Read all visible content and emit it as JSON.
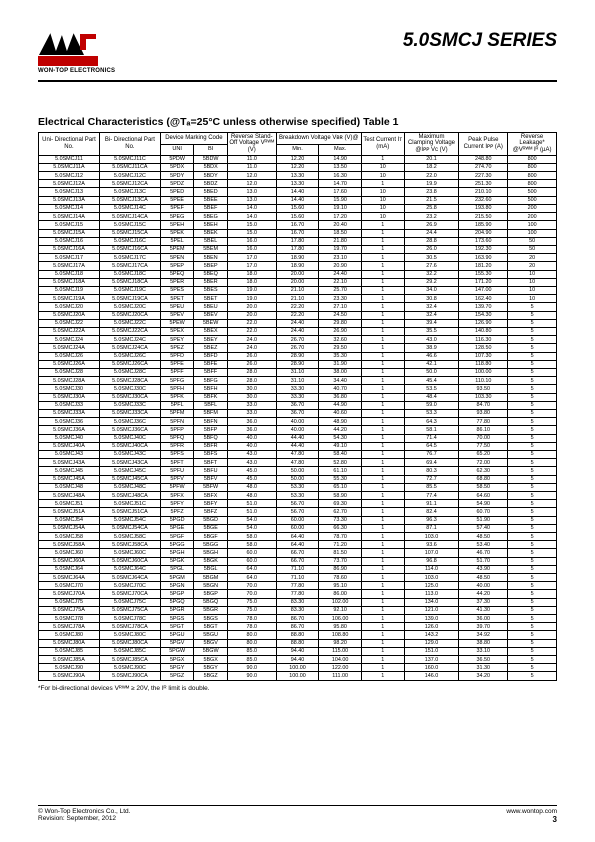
{
  "header": {
    "logo_text": "WON-TOP ELECTRONICS",
    "series_title": "5.0SMCJ SERIES"
  },
  "table_title": "Electrical Characteristics (@Tₐ=25°C unless otherwise specified) Table 1",
  "columns": {
    "uni": "Uni-\nDirectional\nPart No.",
    "bi": "Bi-\nDirectional\nPart No.",
    "marking": "Device\nMarking Code",
    "marking_uni": "UNI",
    "marking_bi": "BI",
    "vrwm": "Reverse\nStand-Off\nVoltage\nVᴿᵂᴹ (V)",
    "bdv": "Breakdown Voltage\nVʙʀ (V)@",
    "bdv_min": "Min.",
    "bdv_max": "Max.",
    "it": "Test\nCurrent\nIᴛ (mA)",
    "vc": "Maximum\nClamping\nVoltage @Iᴘᴘ\nVᴄ (V)",
    "ipp": "Peak Pulse\nCurrent\nIᴘᴘ (A)",
    "ir": "Reverse\nLeakage*\n@Vᴿᵂᴹ\nIᴿ (µA)"
  },
  "groups": [
    [
      [
        "5.0SMCJ11",
        "5.0SMCJ11C",
        "5PDW",
        "5BDW",
        "11.0",
        "12.20",
        "14.90",
        "1",
        "20.1",
        "248.80",
        "800"
      ],
      [
        "5.0SMCJ11A",
        "5.0SMCJ11CA",
        "5PDX",
        "5BDX",
        "11.0",
        "12.20",
        "13.50",
        "10",
        "18.2",
        "274.70",
        "800"
      ],
      [
        "5.0SMCJ12",
        "5.0SMCJ12C",
        "5PDY",
        "5BDY",
        "12.0",
        "13.30",
        "16.30",
        "10",
        "22.0",
        "227.30",
        "800"
      ],
      [
        "5.0SMCJ12A",
        "5.0SMCJ12CA",
        "5PDZ",
        "5BDZ",
        "12.0",
        "13.30",
        "14.70",
        "1",
        "19.9",
        "251.30",
        "800"
      ]
    ],
    [
      [
        "5.0SMCJ13",
        "5.0SMCJ13C",
        "5PED",
        "5BED",
        "13.0",
        "14.40",
        "17.60",
        "10",
        "23.8",
        "210.10",
        "500"
      ],
      [
        "5.0SMCJ13A",
        "5.0SMCJ13CA",
        "5PEE",
        "5BEE",
        "13.0",
        "14.40",
        "15.90",
        "10",
        "21.5",
        "232.60",
        "500"
      ],
      [
        "5.0SMCJ14",
        "5.0SMCJ14C",
        "5PEF",
        "5BEF",
        "14.0",
        "15.60",
        "19.10",
        "10",
        "25.8",
        "193.80",
        "200"
      ],
      [
        "5.0SMCJ14A",
        "5.0SMCJ14CA",
        "5PEG",
        "5BEG",
        "14.0",
        "15.60",
        "17.20",
        "10",
        "23.2",
        "215.50",
        "200"
      ]
    ],
    [
      [
        "5.0SMCJ15",
        "5.0SMCJ15C",
        "5PEH",
        "5BEH",
        "15.0",
        "16.70",
        "20.40",
        "1",
        "26.9",
        "185.90",
        "100"
      ],
      [
        "5.0SMCJ15A",
        "5.0SMCJ15CA",
        "5PEK",
        "5BEK",
        "15.0",
        "16.70",
        "18.50",
        "1",
        "24.4",
        "204.90",
        "100"
      ],
      [
        "5.0SMCJ16",
        "5.0SMCJ16C",
        "5PEL",
        "5BEL",
        "16.0",
        "17.80",
        "21.80",
        "1",
        "28.8",
        "173.60",
        "50"
      ],
      [
        "5.0SMCJ16A",
        "5.0SMCJ16CA",
        "5PEM",
        "5BEM",
        "16.0",
        "17.80",
        "19.70",
        "1",
        "26.0",
        "192.30",
        "50"
      ]
    ],
    [
      [
        "5.0SMCJ17",
        "5.0SMCJ17C",
        "5PEN",
        "5BEN",
        "17.0",
        "18.90",
        "23.10",
        "1",
        "30.5",
        "163.90",
        "20"
      ],
      [
        "5.0SMCJ17A",
        "5.0SMCJ17CA",
        "5PEP",
        "5BEP",
        "17.0",
        "18.90",
        "20.90",
        "1",
        "27.6",
        "181.20",
        "20"
      ],
      [
        "5.0SMCJ18",
        "5.0SMCJ18C",
        "5PEQ",
        "5BEQ",
        "18.0",
        "20.00",
        "24.40",
        "1",
        "32.2",
        "155.30",
        "10"
      ],
      [
        "5.0SMCJ18A",
        "5.0SMCJ18CA",
        "5PER",
        "5BER",
        "18.0",
        "20.00",
        "22.10",
        "1",
        "29.2",
        "171.20",
        "10"
      ]
    ],
    [
      [
        "5.0SMCJ19",
        "5.0SMCJ19C",
        "5PES",
        "5BES",
        "19.0",
        "21.10",
        "25.70",
        "1",
        "34.0",
        "147.00",
        "10"
      ],
      [
        "5.0SMCJ19A",
        "5.0SMCJ19CA",
        "5PET",
        "5BET",
        "19.0",
        "21.10",
        "23.30",
        "1",
        "30.8",
        "162.40",
        "10"
      ],
      [
        "5.0SMCJ20",
        "5.0SMCJ20C",
        "5PEU",
        "5BEU",
        "20.0",
        "22.20",
        "27.10",
        "1",
        "32.4",
        "139.70",
        "5"
      ],
      [
        "5.0SMCJ20A",
        "5.0SMCJ20CA",
        "5PEV",
        "5BEV",
        "20.0",
        "22.20",
        "24.50",
        "1",
        "32.4",
        "154.30",
        "5"
      ]
    ],
    [
      [
        "5.0SMCJ22",
        "5.0SMCJ22C",
        "5PEW",
        "5BEW",
        "22.0",
        "24.40",
        "29.80",
        "1",
        "39.4",
        "126.90",
        "5"
      ],
      [
        "5.0SMCJ22A",
        "5.0SMCJ22CA",
        "5PEX",
        "5BEX",
        "22.0",
        "24.40",
        "26.90",
        "1",
        "35.5",
        "140.80",
        "5"
      ],
      [
        "5.0SMCJ24",
        "5.0SMCJ24C",
        "5PEY",
        "5BEY",
        "24.0",
        "26.70",
        "32.60",
        "1",
        "43.0",
        "116.30",
        "5"
      ],
      [
        "5.0SMCJ24A",
        "5.0SMCJ24CA",
        "5PEZ",
        "5BEZ",
        "24.0",
        "26.70",
        "29.50",
        "1",
        "38.9",
        "128.50",
        "5"
      ]
    ],
    [
      [
        "5.0SMCJ26",
        "5.0SMCJ26C",
        "5PFD",
        "5BFD",
        "26.0",
        "28.90",
        "35.30",
        "1",
        "46.6",
        "107.30",
        "5"
      ],
      [
        "5.0SMCJ26A",
        "5.0SMCJ26CA",
        "5PFE",
        "5BFE",
        "26.0",
        "28.90",
        "31.90",
        "1",
        "42.1",
        "118.80",
        "5"
      ],
      [
        "5.0SMCJ28",
        "5.0SMCJ28C",
        "5PFF",
        "5BFF",
        "28.0",
        "31.10",
        "38.00",
        "1",
        "50.0",
        "100.00",
        "5"
      ],
      [
        "5.0SMCJ28A",
        "5.0SMCJ28CA",
        "5PFG",
        "5BFG",
        "28.0",
        "31.10",
        "34.40",
        "1",
        "45.4",
        "110.10",
        "5"
      ]
    ],
    [
      [
        "5.0SMCJ30",
        "5.0SMCJ30C",
        "5PFH",
        "5BFH",
        "30.0",
        "33.30",
        "40.70",
        "1",
        "53.5",
        "93.50",
        "5"
      ],
      [
        "5.0SMCJ30A",
        "5.0SMCJ30CA",
        "5PFK",
        "5BFK",
        "30.0",
        "33.30",
        "36.80",
        "1",
        "48.4",
        "103.30",
        "5"
      ],
      [
        "5.0SMCJ33",
        "5.0SMCJ33C",
        "5PFL",
        "5BFL",
        "33.0",
        "36.70",
        "44.90",
        "1",
        "59.0",
        "84.70",
        "5"
      ],
      [
        "5.0SMCJ33A",
        "5.0SMCJ33CA",
        "5PFM",
        "5BFM",
        "33.0",
        "36.70",
        "40.60",
        "1",
        "53.3",
        "93.80",
        "5"
      ]
    ],
    [
      [
        "5.0SMCJ36",
        "5.0SMCJ36C",
        "5PFN",
        "5BFN",
        "36.0",
        "40.00",
        "48.90",
        "1",
        "64.3",
        "77.80",
        "5"
      ],
      [
        "5.0SMCJ36A",
        "5.0SMCJ36CA",
        "5PFP",
        "5BFP",
        "36.0",
        "40.00",
        "44.20",
        "1",
        "58.1",
        "86.10",
        "5"
      ],
      [
        "5.0SMCJ40",
        "5.0SMCJ40C",
        "5PFQ",
        "5BFQ",
        "40.0",
        "44.40",
        "54.30",
        "1",
        "71.4",
        "70.00",
        "5"
      ],
      [
        "5.0SMCJ40A",
        "5.0SMCJ40CA",
        "5PFR",
        "5BFR",
        "40.0",
        "44.40",
        "49.10",
        "1",
        "64.5",
        "77.50",
        "5"
      ]
    ],
    [
      [
        "5.0SMCJ43",
        "5.0SMCJ43C",
        "5PFS",
        "5BFS",
        "43.0",
        "47.80",
        "58.40",
        "1",
        "76.7",
        "65.20",
        "5"
      ],
      [
        "5.0SMCJ43A",
        "5.0SMCJ43CA",
        "5PFT",
        "5BFT",
        "43.0",
        "47.80",
        "52.80",
        "1",
        "69.4",
        "72.00",
        "5"
      ],
      [
        "5.0SMCJ45",
        "5.0SMCJ45C",
        "5PFU",
        "5BFU",
        "45.0",
        "50.00",
        "61.10",
        "1",
        "80.3",
        "62.30",
        "5"
      ],
      [
        "5.0SMCJ45A",
        "5.0SMCJ45CA",
        "5PFV",
        "5BFV",
        "45.0",
        "50.00",
        "55.30",
        "1",
        "72.7",
        "68.80",
        "5"
      ]
    ],
    [
      [
        "5.0SMCJ48",
        "5.0SMCJ48C",
        "5PFW",
        "5BFW",
        "48.0",
        "53.30",
        "65.10",
        "1",
        "85.5",
        "58.50",
        "5"
      ],
      [
        "5.0SMCJ48A",
        "5.0SMCJ48CA",
        "5PFX",
        "5BFX",
        "48.0",
        "53.30",
        "58.90",
        "1",
        "77.4",
        "64.60",
        "5"
      ],
      [
        "5.0SMCJ51",
        "5.0SMCJ51C",
        "5PFY",
        "5BFY",
        "51.0",
        "56.70",
        "69.30",
        "1",
        "91.1",
        "54.90",
        "5"
      ],
      [
        "5.0SMCJ51A",
        "5.0SMCJ51CA",
        "5PFZ",
        "5BFZ",
        "51.0",
        "56.70",
        "62.70",
        "1",
        "82.4",
        "60.70",
        "5"
      ]
    ],
    [
      [
        "5.0SMCJ54",
        "5.0SMCJ54C",
        "5PGD",
        "5BGD",
        "54.0",
        "60.00",
        "73.30",
        "1",
        "96.3",
        "51.90",
        "5"
      ],
      [
        "5.0SMCJ54A",
        "5.0SMCJ54CA",
        "5PGE",
        "5BGE",
        "54.0",
        "60.00",
        "66.30",
        "1",
        "87.1",
        "57.40",
        "5"
      ],
      [
        "5.0SMCJ58",
        "5.0SMCJ58C",
        "5PGF",
        "5BGF",
        "58.0",
        "64.40",
        "78.70",
        "1",
        "103.0",
        "48.50",
        "5"
      ],
      [
        "5.0SMCJ58A",
        "5.0SMCJ58CA",
        "5PGG",
        "5BGG",
        "58.0",
        "64.40",
        "71.20",
        "1",
        "93.6",
        "53.40",
        "5"
      ]
    ],
    [
      [
        "5.0SMCJ60",
        "5.0SMCJ60C",
        "5PGH",
        "5BGH",
        "60.0",
        "66.70",
        "81.50",
        "1",
        "107.0",
        "46.70",
        "5"
      ],
      [
        "5.0SMCJ60A",
        "5.0SMCJ60CA",
        "5PGK",
        "5BGK",
        "60.0",
        "66.70",
        "73.70",
        "1",
        "96.8",
        "51.70",
        "5"
      ],
      [
        "5.0SMCJ64",
        "5.0SMCJ64C",
        "5PGL",
        "5BGL",
        "64.0",
        "71.10",
        "86.90",
        "1",
        "114.0",
        "43.90",
        "5"
      ],
      [
        "5.0SMCJ64A",
        "5.0SMCJ64CA",
        "5PGM",
        "5BGM",
        "64.0",
        "71.10",
        "78.60",
        "1",
        "103.0",
        "48.50",
        "5"
      ]
    ],
    [
      [
        "5.0SMCJ70",
        "5.0SMCJ70C",
        "5PGN",
        "5BGN",
        "70.0",
        "77.80",
        "95.10",
        "1",
        "125.0",
        "40.00",
        "5"
      ],
      [
        "5.0SMCJ70A",
        "5.0SMCJ70CA",
        "5PGP",
        "5BGP",
        "70.0",
        "77.80",
        "86.00",
        "1",
        "113.0",
        "44.20",
        "5"
      ],
      [
        "5.0SMCJ75",
        "5.0SMCJ75C",
        "5PGQ",
        "5BGQ",
        "75.0",
        "83.30",
        "102.00",
        "1",
        "134.0",
        "37.30",
        "5"
      ],
      [
        "5.0SMCJ75A",
        "5.0SMCJ75CA",
        "5PGR",
        "5BGR",
        "75.0",
        "83.30",
        "92.10",
        "1",
        "121.0",
        "41.30",
        "5"
      ]
    ],
    [
      [
        "5.0SMCJ78",
        "5.0SMCJ78C",
        "5PGS",
        "5BGS",
        "78.0",
        "86.70",
        "106.00",
        "1",
        "139.0",
        "36.00",
        "5"
      ],
      [
        "5.0SMCJ78A",
        "5.0SMCJ78CA",
        "5PGT",
        "5BGT",
        "78.0",
        "86.70",
        "95.80",
        "1",
        "126.0",
        "39.70",
        "5"
      ],
      [
        "5.0SMCJ80",
        "5.0SMCJ80C",
        "5PGU",
        "5BGU",
        "80.0",
        "88.80",
        "108.80",
        "1",
        "143.2",
        "34.92",
        "5"
      ],
      [
        "5.0SMCJ80A",
        "5.0SMCJ80CA",
        "5PGV",
        "5BGV",
        "80.0",
        "88.80",
        "98.20",
        "1",
        "129.0",
        "38.80",
        "5"
      ]
    ],
    [
      [
        "5.0SMCJ85",
        "5.0SMCJ85C",
        "5PGW",
        "5BGW",
        "85.0",
        "94.40",
        "115.00",
        "1",
        "151.0",
        "33.10",
        "5"
      ],
      [
        "5.0SMCJ85A",
        "5.0SMCJ85CA",
        "5PGX",
        "5BGX",
        "85.0",
        "94.40",
        "104.00",
        "1",
        "137.0",
        "36.50",
        "5"
      ],
      [
        "5.0SMCJ90",
        "5.0SMCJ90C",
        "5PGY",
        "5BGY",
        "90.0",
        "100.00",
        "122.00",
        "1",
        "160.0",
        "31.30",
        "5"
      ],
      [
        "5.0SMCJ90A",
        "5.0SMCJ90CA",
        "5PGZ",
        "5BGZ",
        "90.0",
        "100.00",
        "111.00",
        "1",
        "146.0",
        "34.20",
        "5"
      ]
    ]
  ],
  "footnote": "*For bi-directional devices Vᴿᵂᴹ ≥ 20V, the Iᴿ limit is double.",
  "footer": {
    "left1": "© Won-Top Electronics Co., Ltd.",
    "left2": "Revision: September, 2012",
    "right1": "www.wontop.com",
    "page": "3"
  }
}
